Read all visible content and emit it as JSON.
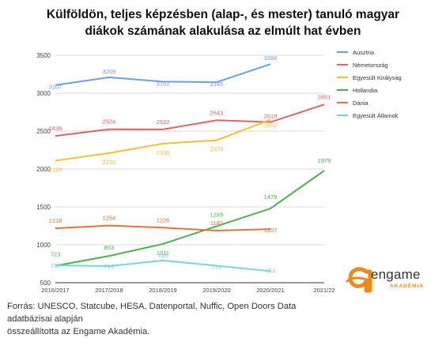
{
  "title_line1": "Külföldön, teljes képzésben (alap-, és mester) tanuló magyar",
  "title_line2": "diákok számának alakulása az elmúlt hat évben",
  "footer_line1": "Forrás: UNESCO, Statcube, HESA, Datenportal, Nuffic, Open Doors Data adatbázisai alapján",
  "footer_line2": "összeállította az Engame Akadémia.",
  "logo": {
    "text": "engame",
    "sub": "AKADÉMIA",
    "accent": "#ef8a1a"
  },
  "chart_data": {
    "type": "line",
    "categories": [
      "2016/2017",
      "2017/2018",
      "2018/2019",
      "2019/2020",
      "2020/2021",
      "2021/22"
    ],
    "ylim": [
      500,
      3500
    ],
    "yticks": [
      500,
      1000,
      1500,
      2000,
      2500,
      3000,
      3500
    ],
    "grid": true,
    "legend_position": "right",
    "series": [
      {
        "name": "Ausztria",
        "color": "#6d9eeb",
        "values": [
          3107,
          3209,
          3152,
          3145,
          3384,
          null
        ],
        "labels": [
          "3107",
          "3209",
          "3152",
          "3145",
          "3384",
          ""
        ]
      },
      {
        "name": "Németország",
        "color": "#e06666",
        "values": [
          2436,
          2524,
          2522,
          2643,
          2618,
          2851
        ],
        "labels": [
          "2436",
          "2524",
          "2522",
          "2643",
          "2618",
          "2851"
        ]
      },
      {
        "name": "Egyesült Királyság",
        "color": "#f1c232",
        "values": [
          2110,
          2210,
          2335,
          2379,
          2650,
          null
        ],
        "labels": [
          "2110",
          "2210",
          "2335",
          "2379",
          "2650",
          ""
        ]
      },
      {
        "name": "Hollandia",
        "color": "#4caf50",
        "values": [
          723,
          853,
          1011,
          1245,
          1479,
          1979
        ],
        "labels": [
          "723",
          "853",
          "1011",
          "1245",
          "1479",
          "1979"
        ]
      },
      {
        "name": "Dánia",
        "color": "#e6733c",
        "values": [
          1218,
          1254,
          1226,
          1187,
          1207,
          null
        ],
        "labels": [
          "1218",
          "1254",
          "1226",
          "1187",
          "1207",
          ""
        ]
      },
      {
        "name": "Egyesült Államok",
        "color": "#76d7d7",
        "values": [
          730,
          719,
          793,
          724,
          653,
          null
        ],
        "labels": [
          "730",
          "719",
          "793",
          "724",
          "653",
          ""
        ]
      }
    ]
  }
}
